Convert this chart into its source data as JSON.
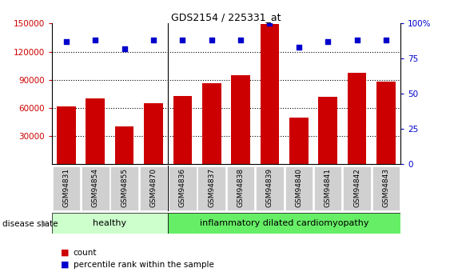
{
  "title": "GDS2154 / 225331_at",
  "categories": [
    "GSM94831",
    "GSM94854",
    "GSM94855",
    "GSM94870",
    "GSM94836",
    "GSM94837",
    "GSM94838",
    "GSM94839",
    "GSM94840",
    "GSM94841",
    "GSM94842",
    "GSM94843"
  ],
  "bar_values": [
    62000,
    70000,
    40000,
    65000,
    73000,
    86000,
    95000,
    149000,
    50000,
    72000,
    97000,
    88000
  ],
  "scatter_percentiles": [
    87,
    88,
    82,
    88,
    88,
    88,
    88,
    100,
    83,
    87,
    88,
    88
  ],
  "bar_color": "#cc0000",
  "scatter_color": "#0000cc",
  "ylim_left": [
    0,
    150000
  ],
  "ylim_right": [
    0,
    100
  ],
  "yticks_left": [
    30000,
    60000,
    90000,
    120000,
    150000
  ],
  "yticks_right": [
    0,
    25,
    50,
    75,
    100
  ],
  "healthy_count": 4,
  "healthy_label": "healthy",
  "disease_label": "inflammatory dilated cardiomyopathy",
  "disease_state_label": "disease state",
  "legend_count_label": "count",
  "legend_percentile_label": "percentile rank within the sample",
  "healthy_color": "#ccffcc",
  "disease_color": "#66ee66",
  "xtick_bg_color": "#d0d0d0"
}
